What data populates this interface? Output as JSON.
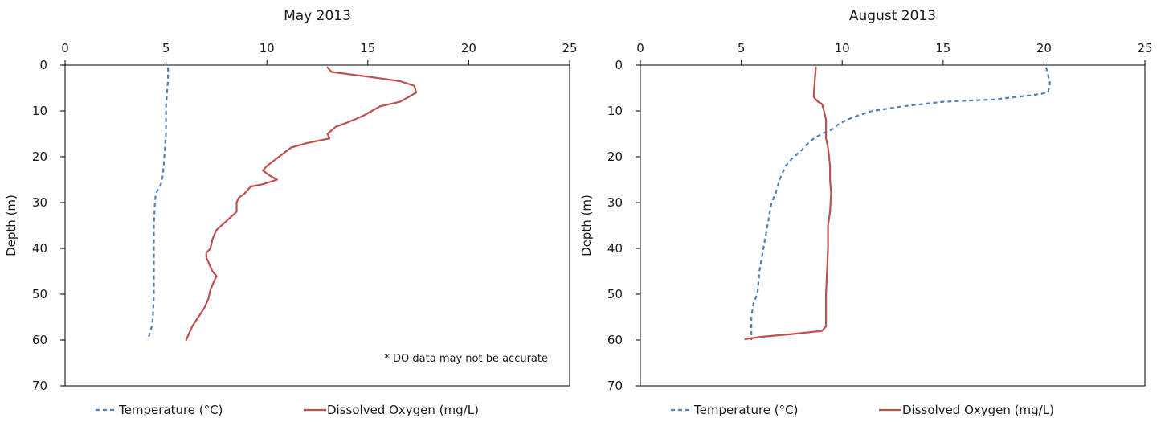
{
  "chart_data": [
    {
      "type": "line",
      "title": "May 2013",
      "xlabel": "",
      "ylabel": "Depth (m)",
      "xlim": [
        0,
        25
      ],
      "ylim": [
        0,
        70
      ],
      "y_inverted": true,
      "x_axis_position": "top",
      "grid": false,
      "legend_placement": "bottom",
      "x_ticks": [
        "0",
        "5",
        "10",
        "15",
        "20",
        "25"
      ],
      "y_ticks": [
        "0",
        "10",
        "20",
        "30",
        "40",
        "50",
        "60",
        "70"
      ],
      "annotation": "* DO data may not be accurate",
      "series": [
        {
          "name": "Temperature (°C)",
          "color": "#4f81bd",
          "dash": "dashed",
          "points": [
            [
              5.1,
              0.5
            ],
            [
              5.1,
              3
            ],
            [
              5.05,
              6
            ],
            [
              5.0,
              9
            ],
            [
              5.0,
              12
            ],
            [
              5.0,
              15
            ],
            [
              4.95,
              18
            ],
            [
              4.9,
              21
            ],
            [
              4.85,
              24
            ],
            [
              4.75,
              26
            ],
            [
              4.5,
              28
            ],
            [
              4.45,
              30
            ],
            [
              4.4,
              35
            ],
            [
              4.4,
              40
            ],
            [
              4.4,
              45
            ],
            [
              4.4,
              50
            ],
            [
              4.35,
              55
            ],
            [
              4.3,
              57
            ],
            [
              4.1,
              60
            ]
          ]
        },
        {
          "name": "Dissolved Oxygen (mg/L)",
          "color": "#c0504d",
          "dash": "solid",
          "points": [
            [
              13.0,
              0.5
            ],
            [
              13.2,
              1.5
            ],
            [
              15.0,
              2.5
            ],
            [
              16.6,
              3.5
            ],
            [
              17.3,
              4.5
            ],
            [
              17.4,
              6
            ],
            [
              16.6,
              8
            ],
            [
              15.6,
              9
            ],
            [
              14.8,
              11
            ],
            [
              14.0,
              12.5
            ],
            [
              13.4,
              13.5
            ],
            [
              13.0,
              15
            ],
            [
              13.1,
              16
            ],
            [
              12.0,
              17
            ],
            [
              11.2,
              18
            ],
            [
              10.9,
              19
            ],
            [
              10.6,
              20
            ],
            [
              10.3,
              21
            ],
            [
              10.0,
              22
            ],
            [
              9.8,
              23
            ],
            [
              10.1,
              24
            ],
            [
              10.5,
              25
            ],
            [
              9.8,
              26
            ],
            [
              9.2,
              26.5
            ],
            [
              8.9,
              28
            ],
            [
              8.6,
              29
            ],
            [
              8.5,
              30
            ],
            [
              8.5,
              32
            ],
            [
              8.0,
              34
            ],
            [
              7.5,
              36
            ],
            [
              7.3,
              38
            ],
            [
              7.2,
              40
            ],
            [
              7.0,
              41
            ],
            [
              7.0,
              42
            ],
            [
              7.1,
              43
            ],
            [
              7.2,
              44
            ],
            [
              7.3,
              45
            ],
            [
              7.5,
              46
            ],
            [
              7.4,
              47
            ],
            [
              7.2,
              49
            ],
            [
              7.1,
              51
            ],
            [
              6.9,
              53
            ],
            [
              6.6,
              55
            ],
            [
              6.3,
              57
            ],
            [
              6.0,
              60
            ]
          ]
        }
      ]
    },
    {
      "type": "line",
      "title": "August 2013",
      "xlabel": "",
      "ylabel": "Depth (m)",
      "xlim": [
        0,
        25
      ],
      "ylim": [
        0,
        70
      ],
      "y_inverted": true,
      "x_axis_position": "top",
      "grid": false,
      "legend_placement": "bottom",
      "x_ticks": [
        "0",
        "5",
        "10",
        "15",
        "20",
        "25"
      ],
      "y_ticks": [
        "0",
        "10",
        "20",
        "30",
        "40",
        "50",
        "60",
        "70"
      ],
      "series": [
        {
          "name": "Temperature (°C)",
          "color": "#4f81bd",
          "dash": "dashed",
          "points": [
            [
              20.1,
              0.5
            ],
            [
              20.2,
              2
            ],
            [
              20.3,
              4
            ],
            [
              20.2,
              6
            ],
            [
              19.5,
              6.5
            ],
            [
              17.5,
              7.5
            ],
            [
              15.0,
              8
            ],
            [
              13.0,
              9
            ],
            [
              11.5,
              10
            ],
            [
              10.8,
              11
            ],
            [
              10.2,
              12
            ],
            [
              9.8,
              13
            ],
            [
              9.5,
              14
            ],
            [
              9.0,
              15
            ],
            [
              8.6,
              16
            ],
            [
              8.2,
              17.5
            ],
            [
              7.9,
              19
            ],
            [
              7.6,
              20
            ],
            [
              7.2,
              22
            ],
            [
              6.9,
              25
            ],
            [
              6.7,
              28
            ],
            [
              6.5,
              30
            ],
            [
              6.3,
              35
            ],
            [
              6.1,
              40
            ],
            [
              5.9,
              45
            ],
            [
              5.8,
              50
            ],
            [
              5.6,
              52
            ],
            [
              5.5,
              55
            ],
            [
              5.5,
              60
            ]
          ]
        },
        {
          "name": "Dissolved Oxygen (mg/L)",
          "color": "#c0504d",
          "dash": "solid",
          "points": [
            [
              8.7,
              0.5
            ],
            [
              8.65,
              3
            ],
            [
              8.6,
              6
            ],
            [
              8.6,
              7
            ],
            [
              8.8,
              8
            ],
            [
              9.0,
              8.5
            ],
            [
              9.1,
              10
            ],
            [
              9.2,
              12
            ],
            [
              9.2,
              14
            ],
            [
              9.2,
              16
            ],
            [
              9.3,
              18
            ],
            [
              9.35,
              20
            ],
            [
              9.4,
              22
            ],
            [
              9.4,
              25
            ],
            [
              9.45,
              28
            ],
            [
              9.4,
              32
            ],
            [
              9.3,
              35
            ],
            [
              9.3,
              40
            ],
            [
              9.25,
              45
            ],
            [
              9.2,
              50
            ],
            [
              9.2,
              55
            ],
            [
              9.2,
              57
            ],
            [
              9.0,
              58
            ],
            [
              7.5,
              58.7
            ],
            [
              6.0,
              59.3
            ],
            [
              5.2,
              59.8
            ]
          ]
        }
      ]
    }
  ]
}
